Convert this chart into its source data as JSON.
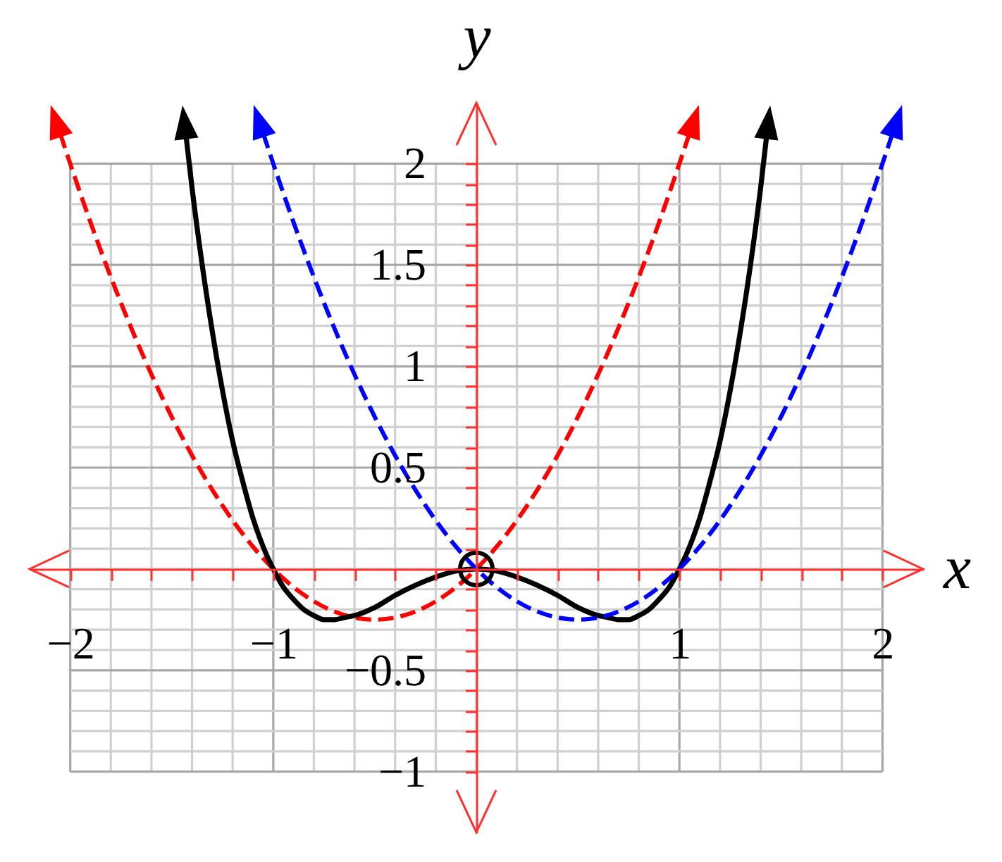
{
  "chart_data": {
    "type": "line",
    "xlabel": "x",
    "ylabel": "y",
    "xlim": [
      -2.2,
      2.2
    ],
    "ylim": [
      -1.3,
      2.3
    ],
    "xticks": [
      {
        "value": -2,
        "label": "−2"
      },
      {
        "value": -1.8,
        "label": null
      },
      {
        "value": -1.6,
        "label": null
      },
      {
        "value": -1.4,
        "label": null
      },
      {
        "value": -1.2,
        "label": null
      },
      {
        "value": -1,
        "label": "−1"
      },
      {
        "value": -0.8,
        "label": null
      },
      {
        "value": -0.6,
        "label": null
      },
      {
        "value": -0.4,
        "label": null
      },
      {
        "value": -0.2,
        "label": null
      },
      {
        "value": 0,
        "label": null
      },
      {
        "value": 0.2,
        "label": null
      },
      {
        "value": 0.4,
        "label": null
      },
      {
        "value": 0.6,
        "label": null
      },
      {
        "value": 0.8,
        "label": null
      },
      1,
      {
        "value": 1.2,
        "label": null
      },
      {
        "value": 1.4,
        "label": null
      },
      {
        "value": 1.6,
        "label": null
      },
      {
        "value": 1.8,
        "label": null
      },
      2
    ],
    "yticks": [
      {
        "value": -1,
        "label": "−1"
      },
      {
        "value": -0.9,
        "label": null
      },
      {
        "value": -0.8,
        "label": null
      },
      {
        "value": -0.7,
        "label": null
      },
      {
        "value": -0.6,
        "label": null
      },
      {
        "value": -0.5,
        "label": "−0.5"
      },
      {
        "value": -0.4,
        "label": null
      },
      {
        "value": -0.3,
        "label": null
      },
      {
        "value": -0.2,
        "label": null
      },
      {
        "value": -0.1,
        "label": null
      },
      {
        "value": 0,
        "label": null
      },
      {
        "value": 0.1,
        "label": null
      },
      {
        "value": 0.2,
        "label": null
      },
      {
        "value": 0.3,
        "label": null
      },
      {
        "value": 0.4,
        "label": null
      },
      0.5,
      {
        "value": 0.6,
        "label": null
      },
      {
        "value": 0.7,
        "label": null
      },
      {
        "value": 0.8,
        "label": null
      },
      {
        "value": 0.9,
        "label": null
      },
      1,
      {
        "value": 1.1,
        "label": null
      },
      {
        "value": 1.2,
        "label": null
      },
      {
        "value": 1.3,
        "label": null
      },
      {
        "value": 1.4,
        "label": null
      },
      1.5,
      {
        "value": 1.6,
        "label": null
      },
      {
        "value": 1.7,
        "label": null
      },
      {
        "value": 1.8,
        "label": null
      },
      {
        "value": 1.9,
        "label": null
      },
      2
    ],
    "grid": true,
    "series": [
      {
        "color": "#ff0000",
        "line_style": "dashed",
        "x": [
          -2.05,
          -2,
          -1.9,
          -1.8,
          -1.7,
          -1.6,
          -1.5,
          -1.4,
          -1.3,
          -1.2,
          -1.1,
          -1,
          -0.9,
          -0.8,
          -0.7,
          -0.6,
          -0.5,
          -0.4,
          -0.3,
          -0.2,
          -0.1,
          0,
          0.1,
          0.2,
          0.3,
          0.4,
          0.5,
          0.6,
          0.7,
          0.8,
          0.9,
          1,
          1.05
        ],
        "values": [
          2.15,
          2,
          1.71,
          1.44,
          1.19,
          0.96,
          0.75,
          0.56,
          0.39,
          0.24,
          0.11,
          0,
          -0.09,
          -0.16,
          -0.21,
          -0.24,
          -0.25,
          -0.24,
          -0.21,
          -0.16,
          -0.09,
          0,
          0.11,
          0.24,
          0.39,
          0.56,
          0.75,
          0.96,
          1.19,
          1.44,
          1.71,
          2,
          2.15
        ]
      },
      {
        "color": "#000000",
        "line_style": "solid",
        "x": [
          -1.43,
          -1.4,
          -1.35,
          -1.3,
          -1.25,
          -1.2,
          -1.15,
          -1.1,
          -1.05,
          -1,
          -0.95,
          -0.9,
          -0.85,
          -0.8,
          -0.75,
          -0.7,
          -0.65,
          -0.6,
          -0.5,
          -0.4,
          -0.3,
          -0.2,
          -0.1,
          0,
          0.1,
          0.2,
          0.3,
          0.4,
          0.5,
          0.6,
          0.65,
          0.7,
          0.75,
          0.8,
          0.85,
          0.9,
          0.95,
          1,
          1.05,
          1.1,
          1.15,
          1.2,
          1.25,
          1.3,
          1.35,
          1.4,
          1.43
        ],
        "values": [
          2.14,
          1.88,
          1.5,
          1.17,
          0.88,
          0.63,
          0.43,
          0.25,
          0.11,
          0,
          -0.09,
          -0.15,
          -0.2,
          -0.23,
          -0.25,
          -0.25,
          -0.24,
          -0.23,
          -0.19,
          -0.13,
          -0.08,
          -0.04,
          -0.01,
          0,
          -0.01,
          -0.04,
          -0.08,
          -0.13,
          -0.19,
          -0.23,
          -0.24,
          -0.25,
          -0.25,
          -0.23,
          -0.2,
          -0.15,
          -0.09,
          0,
          0.11,
          0.25,
          0.43,
          0.63,
          0.88,
          1.17,
          1.5,
          1.88,
          2.14
        ]
      },
      {
        "color": "#0000ff",
        "line_style": "dashed",
        "x": [
          -1.05,
          -1,
          -0.9,
          -0.8,
          -0.7,
          -0.6,
          -0.5,
          -0.4,
          -0.3,
          -0.2,
          -0.1,
          0,
          0.1,
          0.2,
          0.3,
          0.4,
          0.5,
          0.6,
          0.7,
          0.8,
          0.9,
          1,
          1.1,
          1.2,
          1.3,
          1.4,
          1.5,
          1.6,
          1.7,
          1.8,
          1.9,
          2,
          2.05
        ],
        "values": [
          2.15,
          2,
          1.71,
          1.44,
          1.19,
          0.96,
          0.75,
          0.56,
          0.39,
          0.24,
          0.11,
          0,
          -0.09,
          -0.16,
          -0.21,
          -0.24,
          -0.25,
          -0.24,
          -0.21,
          -0.16,
          -0.09,
          0,
          0.11,
          0.24,
          0.39,
          0.56,
          0.75,
          0.96,
          1.19,
          1.44,
          1.71,
          2,
          2.15
        ]
      },
      {
        "type": "scatter",
        "color": "#000000",
        "marker": "circle",
        "x": [
          0
        ],
        "values": [
          0
        ]
      }
    ]
  }
}
